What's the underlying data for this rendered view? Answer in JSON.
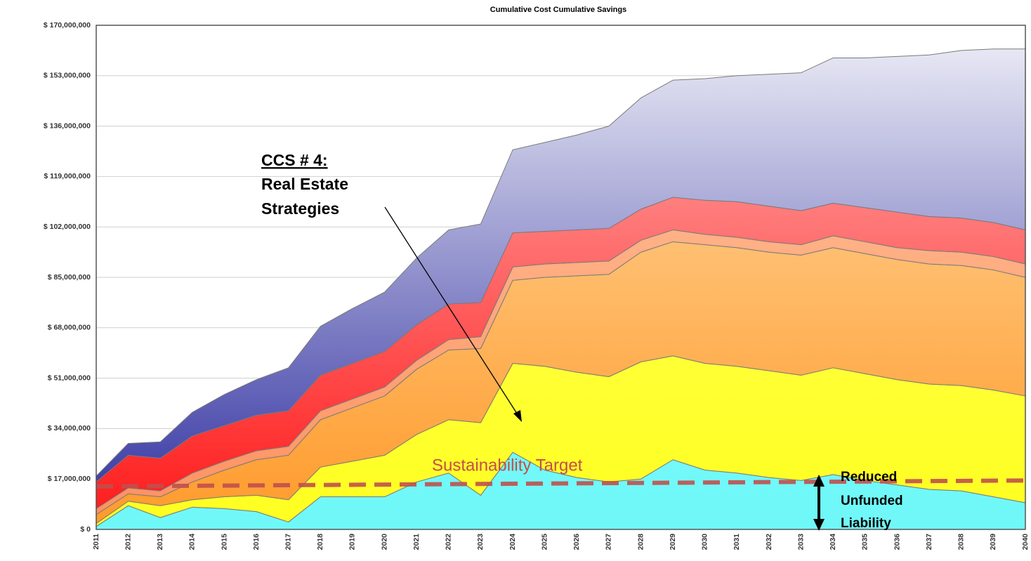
{
  "chart_data": {
    "type": "stacked_area",
    "title": "Cumulative Cost Cumulative Savings",
    "categories": [
      "2011",
      "2012",
      "2013",
      "2014",
      "2015",
      "2016",
      "2017",
      "2018",
      "2019",
      "2020",
      "2021",
      "2022",
      "2023",
      "2024",
      "2025",
      "2026",
      "2027",
      "2028",
      "2029",
      "2030",
      "2031",
      "2032",
      "2033",
      "2034",
      "2035",
      "2036",
      "2037",
      "2038",
      "2039",
      "2040"
    ],
    "series": [
      {
        "color": "#7ffcfc",
        "gradient": [
          "#6ff8f8",
          "#86fdfd"
        ],
        "values": [
          1000000,
          8000000,
          4000000,
          7500000,
          7000000,
          6000000,
          2500000,
          11000000,
          11000000,
          11000000,
          16000000,
          19000000,
          11500000,
          26000000,
          20000000,
          17500000,
          16000000,
          17000000,
          23500000,
          20000000,
          19000000,
          17500000,
          16500000,
          18500000,
          16500000,
          15000000,
          13500000,
          13000000,
          11000000,
          9000000
        ]
      },
      {
        "color": "#ffff33",
        "gradient": [
          "#ffff20",
          "#ffff60"
        ],
        "values": [
          1000000,
          1500000,
          4000000,
          2500000,
          4000000,
          5500000,
          7500000,
          10000000,
          12000000,
          14000000,
          16000000,
          18000000,
          24500000,
          30000000,
          35000000,
          35500000,
          35500000,
          39500000,
          35000000,
          36000000,
          36000000,
          36000000,
          35500000,
          36000000,
          36000000,
          35500000,
          35500000,
          35500000,
          36000000,
          36000000
        ]
      },
      {
        "color": "#ffa640",
        "gradient": [
          "#ff9a2a",
          "#ffdca8"
        ],
        "values": [
          3000000,
          2500000,
          3000000,
          6000000,
          9000000,
          12000000,
          15000000,
          16000000,
          18000000,
          20000000,
          22000000,
          23500000,
          25000000,
          28000000,
          30000000,
          32500000,
          34500000,
          37000000,
          38500000,
          40000000,
          40000000,
          40000000,
          40500000,
          40500000,
          40500000,
          40500000,
          40500000,
          40500000,
          40500000,
          40000000
        ]
      },
      {
        "color": "#ffb07a",
        "gradient": [
          "#ff9060",
          "#ffc8a0"
        ],
        "values": [
          2000000,
          2000000,
          2000000,
          3000000,
          3000000,
          3000000,
          3000000,
          3000000,
          3000000,
          3000000,
          3000000,
          3500000,
          4000000,
          4500000,
          4500000,
          4500000,
          4500000,
          4000000,
          4000000,
          3500000,
          3500000,
          3500000,
          3500000,
          4000000,
          4000000,
          4000000,
          4500000,
          4500000,
          4500000,
          4500000
        ]
      },
      {
        "color": "#ff4040",
        "gradient": [
          "#ff1818",
          "#ffb4b4"
        ],
        "values": [
          9000000,
          11000000,
          11000000,
          12500000,
          12000000,
          12000000,
          12000000,
          12000000,
          12000000,
          12000000,
          12000000,
          12000000,
          11500000,
          11500000,
          11000000,
          11000000,
          11000000,
          10500000,
          11000000,
          11500000,
          12000000,
          12000000,
          11500000,
          11000000,
          11500000,
          12000000,
          11500000,
          11500000,
          11500000,
          11500000
        ]
      },
      {
        "color": "#5050b8",
        "gradient": [
          "#2e2ea0",
          "#f0f0f8"
        ],
        "values": [
          2000000,
          4000000,
          5500000,
          8000000,
          10500000,
          12000000,
          14500000,
          16500000,
          18500000,
          20000000,
          22500000,
          25000000,
          26500000,
          28000000,
          30000000,
          32000000,
          34500000,
          37500000,
          39500000,
          41000000,
          42500000,
          44500000,
          46500000,
          49000000,
          50500000,
          52500000,
          54500000,
          56500000,
          58500000,
          61000000
        ]
      }
    ],
    "ylim": [
      0,
      170000000
    ],
    "yticks": [
      {
        "value": 0,
        "label": "$ 0"
      },
      {
        "value": 17000000,
        "label": "$ 17,000,000"
      },
      {
        "value": 34000000,
        "label": "$ 34,000,000"
      },
      {
        "value": 51000000,
        "label": "$ 51,000,000"
      },
      {
        "value": 68000000,
        "label": "$ 68,000,000"
      },
      {
        "value": 85000000,
        "label": "$ 85,000,000"
      },
      {
        "value": 102000000,
        "label": "$ 102,000,000"
      },
      {
        "value": 119000000,
        "label": "$ 119,000,000"
      },
      {
        "value": 136000000,
        "label": "$ 136,000,000"
      },
      {
        "value": 153000000,
        "label": "$ 153,000,000"
      },
      {
        "value": 170000000,
        "label": "$ 170,000,000"
      }
    ],
    "grid": true,
    "target_line": {
      "label": "Sustainability Target",
      "color": "#c0504d",
      "values": [
        14500000,
        16500000
      ]
    },
    "annotation": {
      "heading": "CCS # 4:",
      "lines": [
        "Real Estate",
        "Strategies"
      ]
    },
    "callout": [
      "Reduced",
      "Unfunded",
      "Liability"
    ]
  }
}
